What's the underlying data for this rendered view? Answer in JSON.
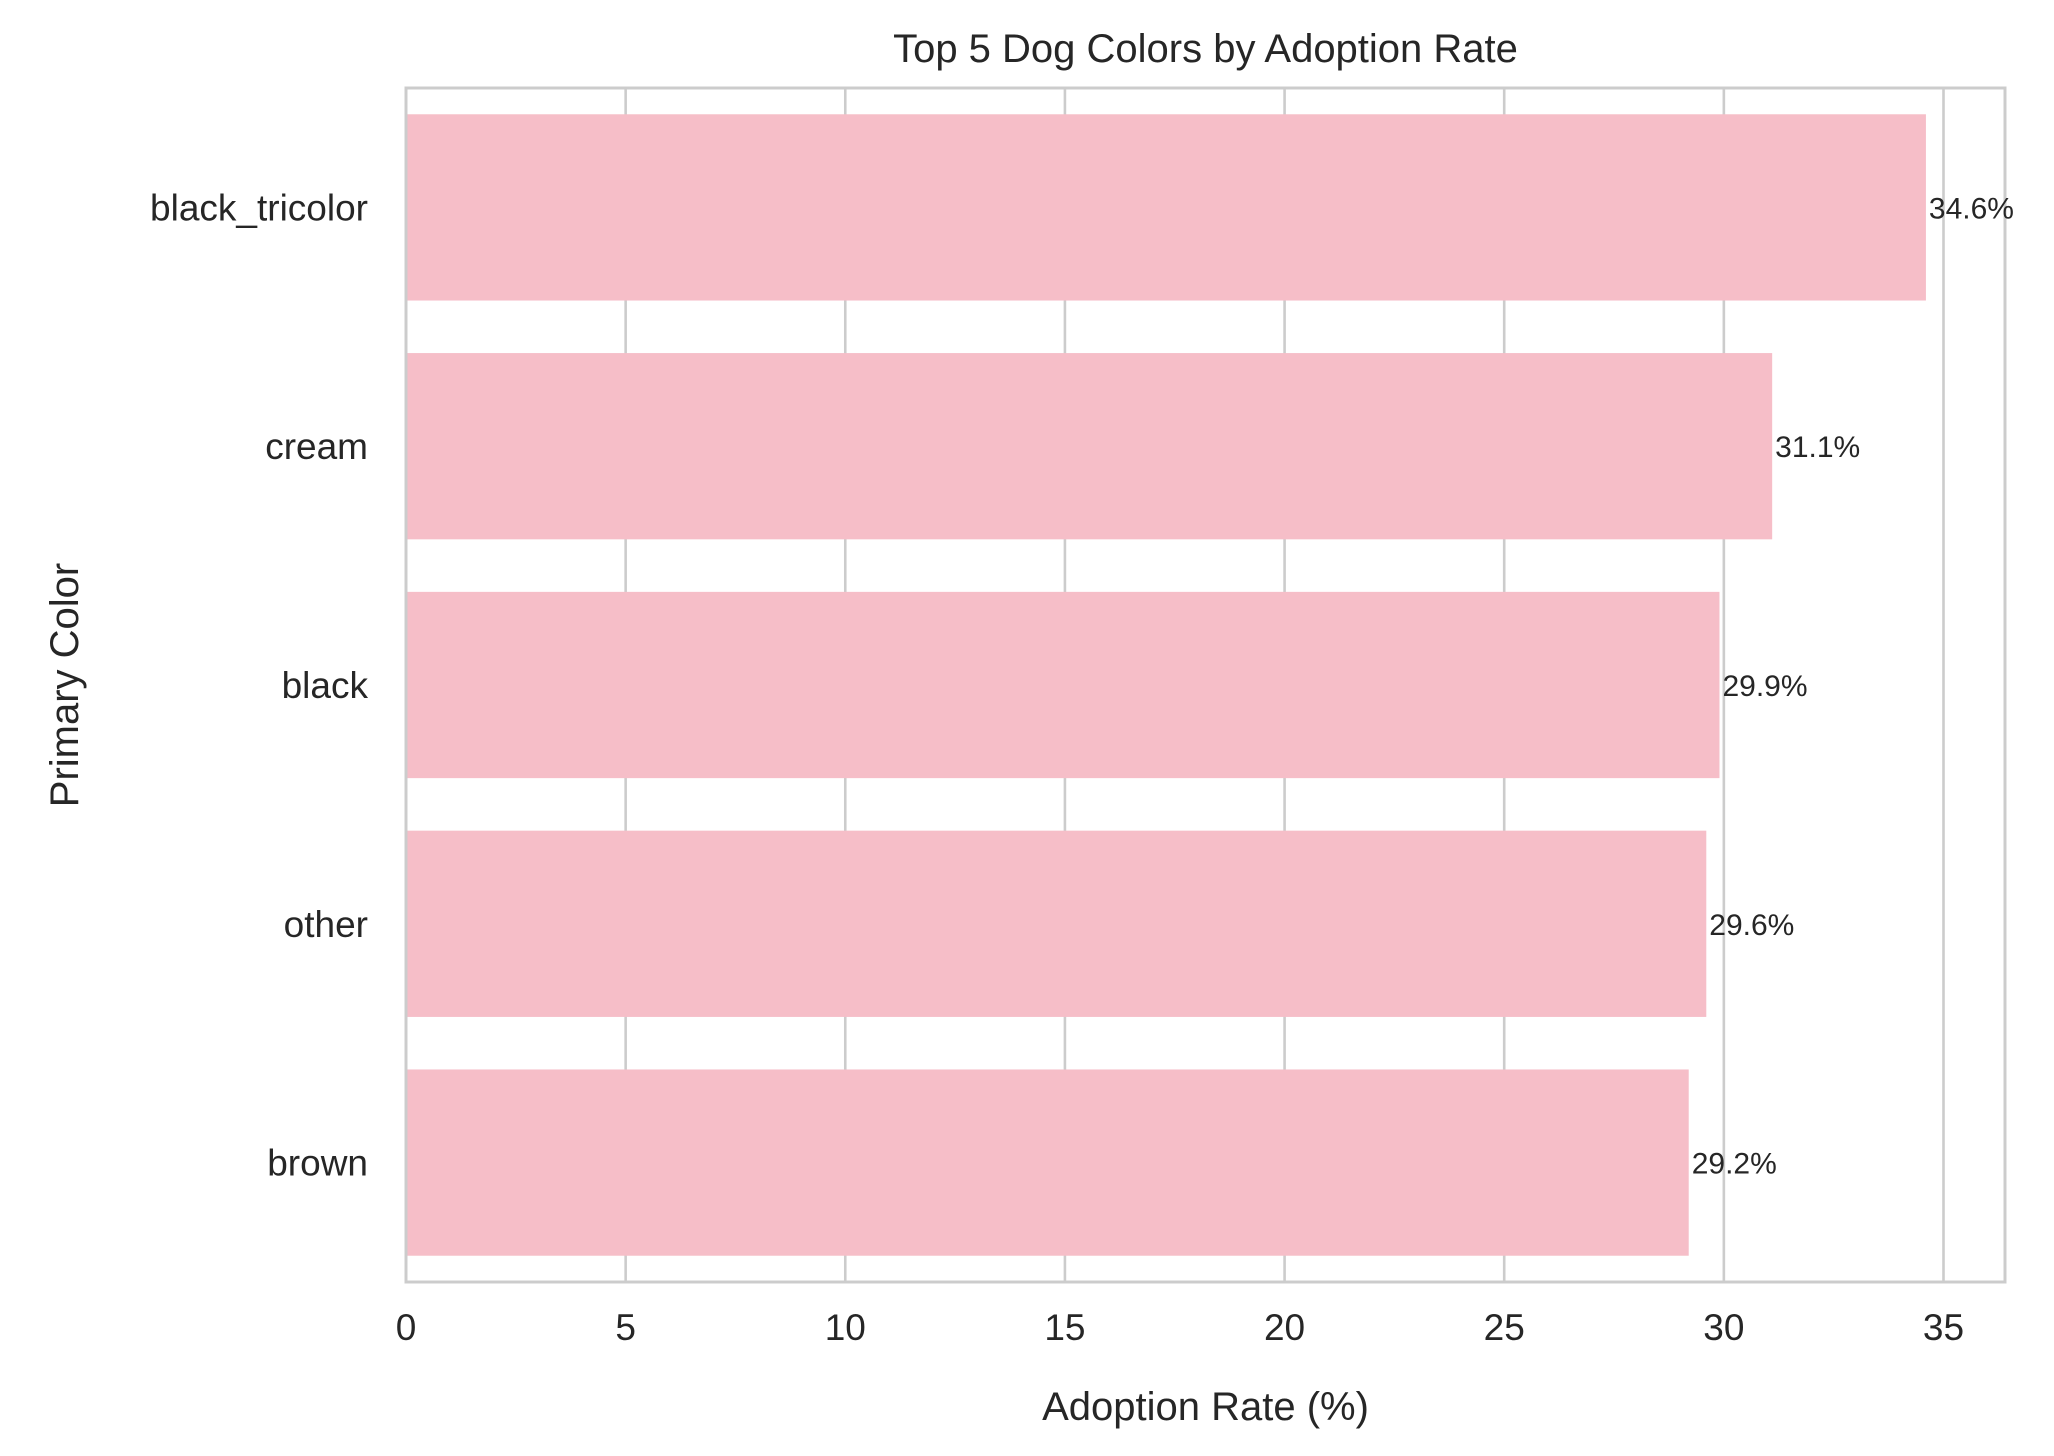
{
  "chart_data": {
    "type": "bar",
    "orientation": "horizontal",
    "title": "Top 5 Dog Colors by Adoption Rate",
    "xlabel": "Adoption Rate (%)",
    "ylabel": "Primary Color",
    "categories": [
      "black_tricolor",
      "cream",
      "black",
      "other",
      "brown"
    ],
    "values": [
      34.6,
      31.1,
      29.9,
      29.6,
      29.2
    ],
    "value_labels": [
      "34.6%",
      "31.1%",
      "29.9%",
      "29.6%",
      "29.2%"
    ],
    "xlim": [
      0,
      36.4
    ],
    "xticks": [
      0,
      5,
      10,
      15,
      20,
      25,
      30,
      35
    ],
    "xtick_labels": [
      "0",
      "5",
      "10",
      "15",
      "20",
      "25",
      "30",
      "35"
    ],
    "grid": true,
    "bar_color": "#f6bec8",
    "grid_color": "#cccccc"
  }
}
